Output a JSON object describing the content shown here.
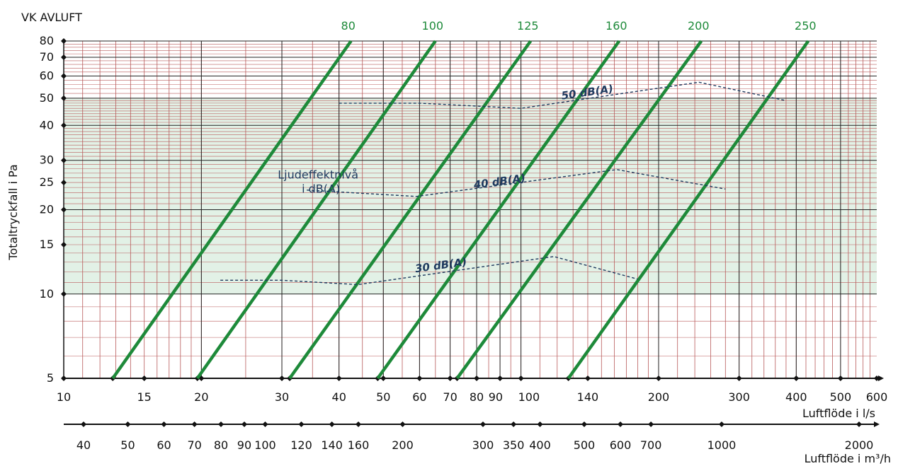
{
  "chart_data": {
    "type": "line",
    "title": "VK AVLUFT",
    "xlabel": "Luftflöde i l/s",
    "x2label": "Luftflöde i m³/h",
    "ylabel": "Totaltryckfall i Pa",
    "x_scale": "log",
    "y_scale": "log",
    "xlim": [
      10,
      600
    ],
    "ylim": [
      5,
      80
    ],
    "grid": true,
    "x_ticks": [
      10,
      15,
      20,
      30,
      40,
      50,
      60,
      70,
      80,
      90,
      100,
      140,
      200,
      300,
      400,
      500,
      600
    ],
    "x_tick_labels": [
      "10",
      "15",
      "20",
      "30",
      "40",
      "50",
      "60",
      "70",
      "80",
      "90",
      "100",
      "140",
      "200",
      "300",
      "400",
      "500",
      "600"
    ],
    "y_ticks": [
      5,
      10,
      15,
      20,
      25,
      30,
      40,
      50,
      60,
      70,
      80
    ],
    "y_tick_labels": [
      "5",
      "10",
      "15",
      "20",
      "25",
      "30",
      "40",
      "50",
      "60",
      "70",
      "80"
    ],
    "x2_ticks": [
      40,
      50,
      60,
      70,
      80,
      90,
      100,
      120,
      140,
      160,
      200,
      300,
      350,
      400,
      500,
      600,
      700,
      1000,
      2000
    ],
    "x2_tick_labels": [
      "40",
      "50",
      "60",
      "70",
      "80",
      "90",
      "100",
      "120",
      "140",
      "160",
      "200",
      "300",
      "350",
      "400",
      "500",
      "600",
      "700",
      "1000",
      "2000"
    ],
    "shaded_band": {
      "y_from": 10,
      "y_to": 50,
      "color": "#e2f1e6"
    },
    "series": [
      {
        "name": "80",
        "points": [
          [
            12.8,
            5
          ],
          [
            42.5,
            80
          ]
        ],
        "color": "#1e8a3a"
      },
      {
        "name": "100",
        "points": [
          [
            19.6,
            5
          ],
          [
            65,
            80
          ]
        ],
        "color": "#1e8a3a"
      },
      {
        "name": "125",
        "points": [
          [
            31.2,
            5
          ],
          [
            105,
            80
          ]
        ],
        "color": "#1e8a3a"
      },
      {
        "name": "160",
        "points": [
          [
            48.6,
            5
          ],
          [
            164,
            80
          ]
        ],
        "color": "#1e8a3a"
      },
      {
        "name": "200",
        "points": [
          [
            72.5,
            5
          ],
          [
            248,
            80
          ]
        ],
        "color": "#1e8a3a"
      },
      {
        "name": "250",
        "points": [
          [
            127,
            5
          ],
          [
            425,
            80
          ]
        ],
        "color": "#1e8a3a"
      }
    ],
    "sound_curves": [
      {
        "label": "30 dB(A)",
        "label_at": [
          67,
          12.3
        ],
        "points": [
          [
            22,
            11.2
          ],
          [
            30,
            11.2
          ],
          [
            44,
            10.8
          ],
          [
            118,
            13.6
          ],
          [
            180,
            11.3
          ]
        ]
      },
      {
        "label": "40 dB(A)",
        "label_at": [
          90,
          24.5
        ],
        "points": [
          [
            34,
            23.5
          ],
          [
            59,
            22.3
          ],
          [
            162,
            27.8
          ],
          [
            280,
            23.7
          ]
        ]
      },
      {
        "label": "50 dB(A)",
        "label_at": [
          140,
          51
        ],
        "points": [
          [
            40,
            48
          ],
          [
            60,
            48
          ],
          [
            100,
            46
          ],
          [
            245,
            57
          ],
          [
            380,
            49
          ]
        ]
      }
    ],
    "annotation": {
      "lines": [
        "Ljudeffektnivå",
        "i dB(A)"
      ],
      "at": [
        36,
        23
      ]
    },
    "line_color": "#1e8a3a",
    "sound_color": "#1f3a5f",
    "grid_color": "#b85a5a"
  }
}
